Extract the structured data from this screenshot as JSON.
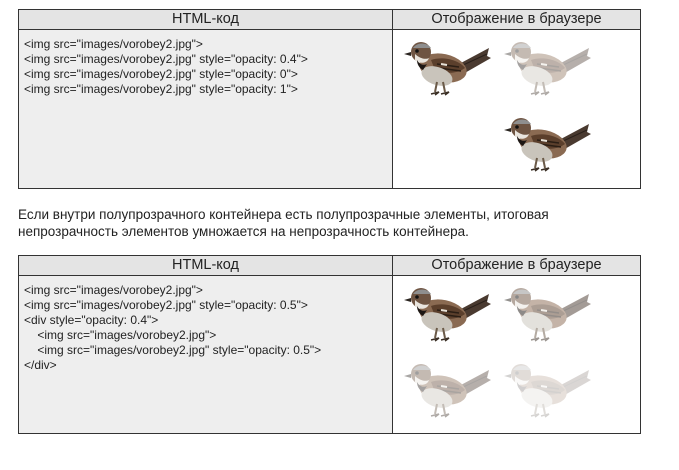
{
  "table1": {
    "header_code": "HTML-код",
    "header_display": "Отображение в браузере",
    "code_lines": [
      "<img src=\"images/vorobey2.jpg\">",
      "<img src=\"images/vorobey2.jpg\" style=\"opacity: 0.4\">",
      "<img src=\"images/vorobey2.jpg\" style=\"opacity: 0\">",
      "<img src=\"images/vorobey2.jpg\" style=\"opacity: 1\">"
    ],
    "birds": [
      {
        "name": "sparrow-image",
        "opacity": 1
      },
      {
        "name": "sparrow-image",
        "opacity": 0.4
      },
      {
        "name": "sparrow-image",
        "opacity": 0
      },
      {
        "name": "sparrow-image",
        "opacity": 1
      }
    ]
  },
  "paragraph": "Если внутри полупрозрачного контейнера есть полупрозрачные элементы, итоговая непрозрачность элементов умножается на непрозрачность контейнера.",
  "table2": {
    "header_code": "HTML-код",
    "header_display": "Отображение в браузере",
    "code_lines": [
      "<img src=\"images/vorobey2.jpg\">",
      "<img src=\"images/vorobey2.jpg\" style=\"opacity: 0.5\">",
      "<div style=\"opacity: 0.4\">",
      "    <img src=\"images/vorobey2.jpg\">",
      "    <img src=\"images/vorobey2.jpg\" style=\"opacity: 0.5\">",
      "</div>"
    ],
    "birds": [
      {
        "name": "sparrow-image",
        "opacity": 1
      },
      {
        "name": "sparrow-image",
        "opacity": 0.5
      },
      {
        "name": "sparrow-image",
        "opacity": 0.4
      },
      {
        "name": "sparrow-image",
        "opacity": 0.2
      }
    ]
  }
}
